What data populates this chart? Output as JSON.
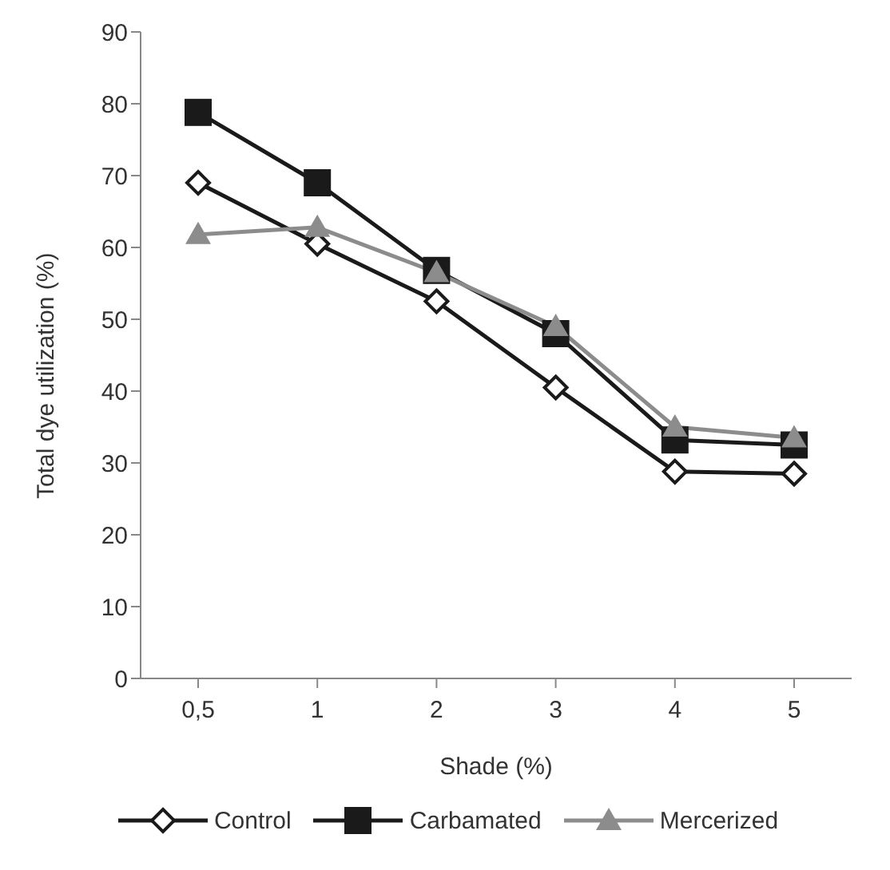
{
  "chart_data": {
    "type": "line",
    "xlabel": "Shade (%)",
    "ylabel": "Total dye utilization (%)",
    "categories": [
      "0,5",
      "1",
      "2",
      "3",
      "4",
      "5"
    ],
    "series": [
      {
        "name": "Control",
        "color": "#1a1a1a",
        "marker": "diamond",
        "values": [
          69,
          60.5,
          52.5,
          40.5,
          28.8,
          28.5
        ]
      },
      {
        "name": "Carbamated",
        "color": "#1a1a1a",
        "marker": "square",
        "values": [
          78.8,
          69,
          56.8,
          48,
          33.2,
          32.5
        ]
      },
      {
        "name": "Mercerized",
        "color": "#8c8c8c",
        "marker": "triangle",
        "values": [
          61.8,
          62.8,
          56.5,
          49,
          35,
          33.5
        ]
      }
    ],
    "ylim": [
      0,
      90
    ],
    "yticks": [
      0,
      10,
      20,
      30,
      40,
      50,
      60,
      70,
      80,
      90
    ],
    "grid": false,
    "legend": "bottom"
  }
}
